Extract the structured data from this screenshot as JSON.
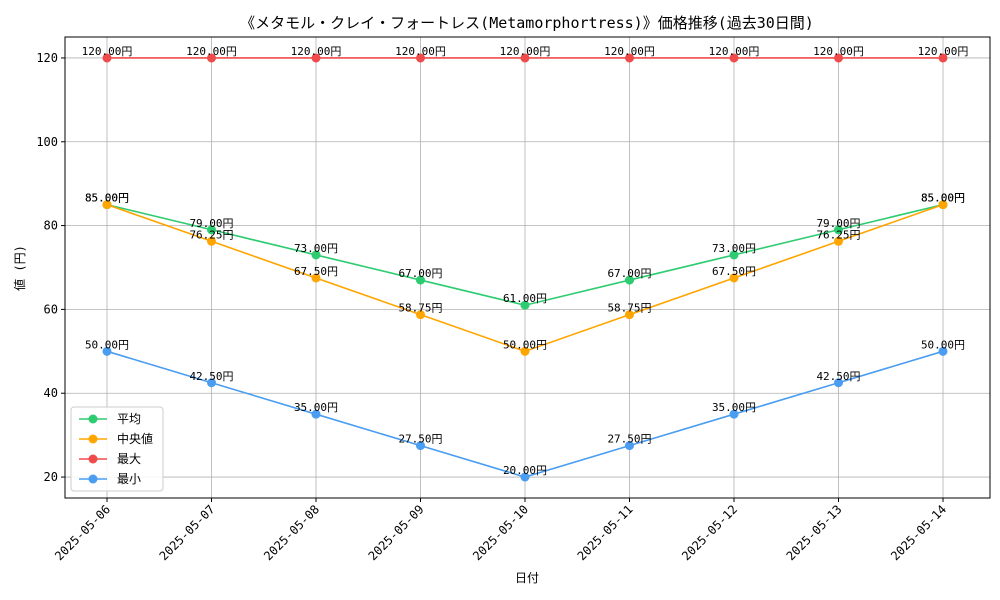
{
  "chart_data": {
    "type": "line",
    "title": "《メタモル・クレイ・フォートレス(Metamorphortress)》価格推移(過去30日間)",
    "xlabel": "日付",
    "ylabel": "値 (円)",
    "categories": [
      "2025-05-06",
      "2025-05-07",
      "2025-05-08",
      "2025-05-09",
      "2025-05-10",
      "2025-05-11",
      "2025-05-12",
      "2025-05-13",
      "2025-05-14"
    ],
    "ylim": [
      15,
      125
    ],
    "yticks": [
      20,
      40,
      60,
      80,
      100,
      120
    ],
    "grid": true,
    "legend_position": "lower-left",
    "label_suffix": "円",
    "series": [
      {
        "name": "平均",
        "color": "#2ecc71",
        "values": [
          85.0,
          79.0,
          73.0,
          67.0,
          61.0,
          67.0,
          73.0,
          79.0,
          85.0
        ],
        "labels": [
          "85.00円",
          "79.00円",
          "73.00円",
          "67.00円",
          "61.00円",
          "67.00円",
          "73.00円",
          "79.00円",
          "85.00円"
        ]
      },
      {
        "name": "中央値",
        "color": "#ffa500",
        "values": [
          85.0,
          76.25,
          67.5,
          58.75,
          50.0,
          58.75,
          67.5,
          76.25,
          85.0
        ],
        "labels": [
          "85.00円",
          "76.25円",
          "67.50円",
          "58.75円",
          "50.00円",
          "58.75円",
          "67.50円",
          "76.25円",
          "85.00円"
        ]
      },
      {
        "name": "最大",
        "color": "#f04b4b",
        "values": [
          120.0,
          120.0,
          120.0,
          120.0,
          120.0,
          120.0,
          120.0,
          120.0,
          120.0
        ],
        "labels": [
          "120.00円",
          "120.00円",
          "120.00円",
          "120.00円",
          "120.00円",
          "120.00円",
          "120.00円",
          "120.00円",
          "120.00円"
        ]
      },
      {
        "name": "最小",
        "color": "#4a9df0",
        "values": [
          50.0,
          42.5,
          35.0,
          27.5,
          20.0,
          27.5,
          35.0,
          42.5,
          50.0
        ],
        "labels": [
          "50.00円",
          "42.50円",
          "35.00円",
          "27.50円",
          "20.00円",
          "27.50円",
          "35.00円",
          "42.50円",
          "50.00円"
        ]
      }
    ]
  }
}
